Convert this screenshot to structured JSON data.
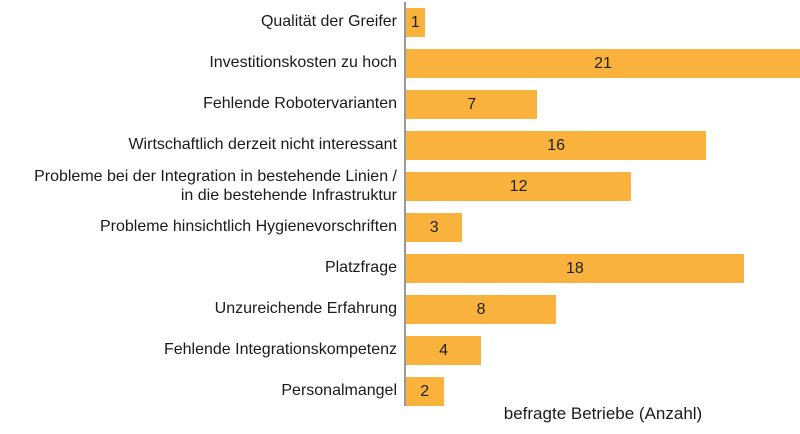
{
  "chart_data": {
    "type": "bar",
    "orientation": "horizontal",
    "categories": [
      "Qualität der Greifer",
      "Investitionskosten zu hoch",
      "Fehlende Robotervarianten",
      "Wirtschaftlich derzeit nicht interessant",
      "Probleme bei der Integration in bestehende Linien /\nin die bestehende Infrastruktur",
      "Probleme hinsichtlich Hygienevorschriften",
      "Platzfrage",
      "Unzureichende Erfahrung",
      "Fehlende Integrationskompetenz",
      "Personalmangel"
    ],
    "values": [
      1,
      21,
      7,
      16,
      12,
      3,
      18,
      8,
      4,
      2
    ],
    "xlabel": "befragte Betriebe (Anzahl)",
    "xmax": 21,
    "value_labels": "inside-centered",
    "grid": false,
    "legend": false,
    "bar_color": "#F9B23B",
    "axis_color": "#97999B",
    "text_color": "#1A1A1A"
  }
}
